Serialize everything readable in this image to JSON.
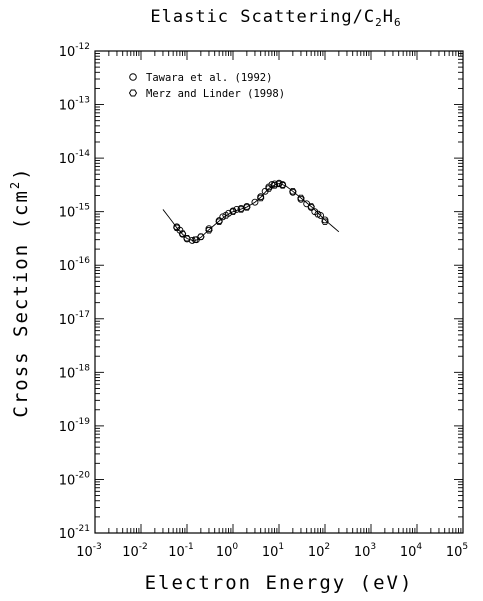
{
  "chart_data": {
    "type": "scatter",
    "title": "Elastic Scattering/C",
    "title_sub1": "2",
    "title_mid": "H",
    "title_sub2": "6",
    "xlabel": "Electron Energy (eV)",
    "ylabel": "Cross Section (cm",
    "ylabel_sup": "2",
    "ylabel_end": ")",
    "x_scale": "log",
    "y_scale": "log",
    "xlim": [
      0.001,
      100000
    ],
    "ylim": [
      1e-21,
      1e-12
    ],
    "x_ticks": [
      {
        "base": "10",
        "exp": "-3",
        "value": 0.001
      },
      {
        "base": "10",
        "exp": "-2",
        "value": 0.01
      },
      {
        "base": "10",
        "exp": "-1",
        "value": 0.1
      },
      {
        "base": "10",
        "exp": "0",
        "value": 1
      },
      {
        "base": "10",
        "exp": "1",
        "value": 10
      },
      {
        "base": "10",
        "exp": "2",
        "value": 100
      },
      {
        "base": "10",
        "exp": "3",
        "value": 1000
      },
      {
        "base": "10",
        "exp": "4",
        "value": 10000
      },
      {
        "base": "10",
        "exp": "5",
        "value": 100000
      }
    ],
    "y_ticks": [
      {
        "base": "10",
        "exp": "-21",
        "value": 1e-21
      },
      {
        "base": "10",
        "exp": "-20",
        "value": 1e-20
      },
      {
        "base": "10",
        "exp": "-19",
        "value": 1e-19
      },
      {
        "base": "10",
        "exp": "-18",
        "value": 1e-18
      },
      {
        "base": "10",
        "exp": "-17",
        "value": 1e-17
      },
      {
        "base": "10",
        "exp": "-16",
        "value": 1e-16
      },
      {
        "base": "10",
        "exp": "-15",
        "value": 1e-15
      },
      {
        "base": "10",
        "exp": "-14",
        "value": 1e-14
      },
      {
        "base": "10",
        "exp": "-13",
        "value": 1e-13
      },
      {
        "base": "10",
        "exp": "-12",
        "value": 1e-12
      }
    ],
    "grid": false,
    "legend_position": "top-left",
    "series": [
      {
        "name": "Tawara et al. (1992)",
        "marker": "circle",
        "x": [
          0.06,
          0.07,
          0.08,
          0.1,
          0.13,
          0.16,
          0.2,
          0.3,
          0.5,
          0.6,
          0.8,
          1.0,
          1.2,
          1.5,
          2.0,
          3.0,
          4.0,
          5.0,
          6.0,
          7.0,
          8.0,
          10.0,
          12.0,
          20.0,
          30.0,
          40.0,
          50.0,
          60.0,
          80.0,
          100.0
        ],
        "y": [
          5.2e-16,
          4.5e-16,
          3.8e-16,
          3.1e-16,
          2.9e-16,
          3e-16,
          3.4e-16,
          4.8e-16,
          6.8e-16,
          8e-16,
          9.3e-16,
          1.03e-15,
          1.1e-15,
          1.15e-15,
          1.25e-15,
          1.5e-15,
          1.9e-15,
          2.4e-15,
          2.9e-15,
          3.2e-15,
          3.3e-15,
          3.4e-15,
          3.2e-15,
          2.3e-15,
          1.7e-15,
          1.4e-15,
          1.2e-15,
          1e-15,
          8.5e-16,
          7e-16
        ]
      },
      {
        "name": "Merz and Linder (1998)",
        "marker": "hexagon",
        "x": [
          0.06,
          0.08,
          0.1,
          0.15,
          0.2,
          0.3,
          0.5,
          0.7,
          1.0,
          1.5,
          2.0,
          4.0,
          6.0,
          8.0,
          10.0,
          12.0,
          20.0,
          30.0,
          50.0,
          70.0,
          100.0
        ],
        "y": [
          5e-16,
          3.9e-16,
          3.2e-16,
          3e-16,
          3.4e-16,
          4.5e-16,
          6.5e-16,
          8.5e-16,
          1e-15,
          1.1e-15,
          1.2e-15,
          1.8e-15,
          2.7e-15,
          3.1e-15,
          3.3e-15,
          3.1e-15,
          2.4e-15,
          1.8e-15,
          1.25e-15,
          9e-16,
          6.5e-16
        ]
      },
      {
        "name": "",
        "line": true,
        "x": [
          0.03,
          0.04,
          0.05,
          0.06,
          0.08,
          0.1,
          0.13,
          0.16,
          0.2,
          0.3,
          0.5,
          0.7,
          1.0,
          1.5,
          2.0,
          3.0,
          4.0,
          5.0,
          6.0,
          8.0,
          10.0,
          12.0,
          15.0,
          20.0,
          30.0,
          50.0,
          70.0,
          100.0,
          150.0,
          200.0
        ],
        "y": [
          1.1e-15,
          8e-16,
          6.2e-16,
          5e-16,
          3.8e-16,
          3.15e-16,
          2.9e-16,
          2.95e-16,
          3.3e-16,
          4.6e-16,
          6.7e-16,
          8.4e-16,
          1e-15,
          1.12e-15,
          1.22e-15,
          1.5e-15,
          1.85e-15,
          2.3e-15,
          2.7e-15,
          3.15e-15,
          3.35e-15,
          3.2e-15,
          2.9e-15,
          2.4e-15,
          1.8e-15,
          1.25e-15,
          9.5e-16,
          7e-16,
          5.2e-16,
          4.2e-16
        ]
      }
    ]
  }
}
